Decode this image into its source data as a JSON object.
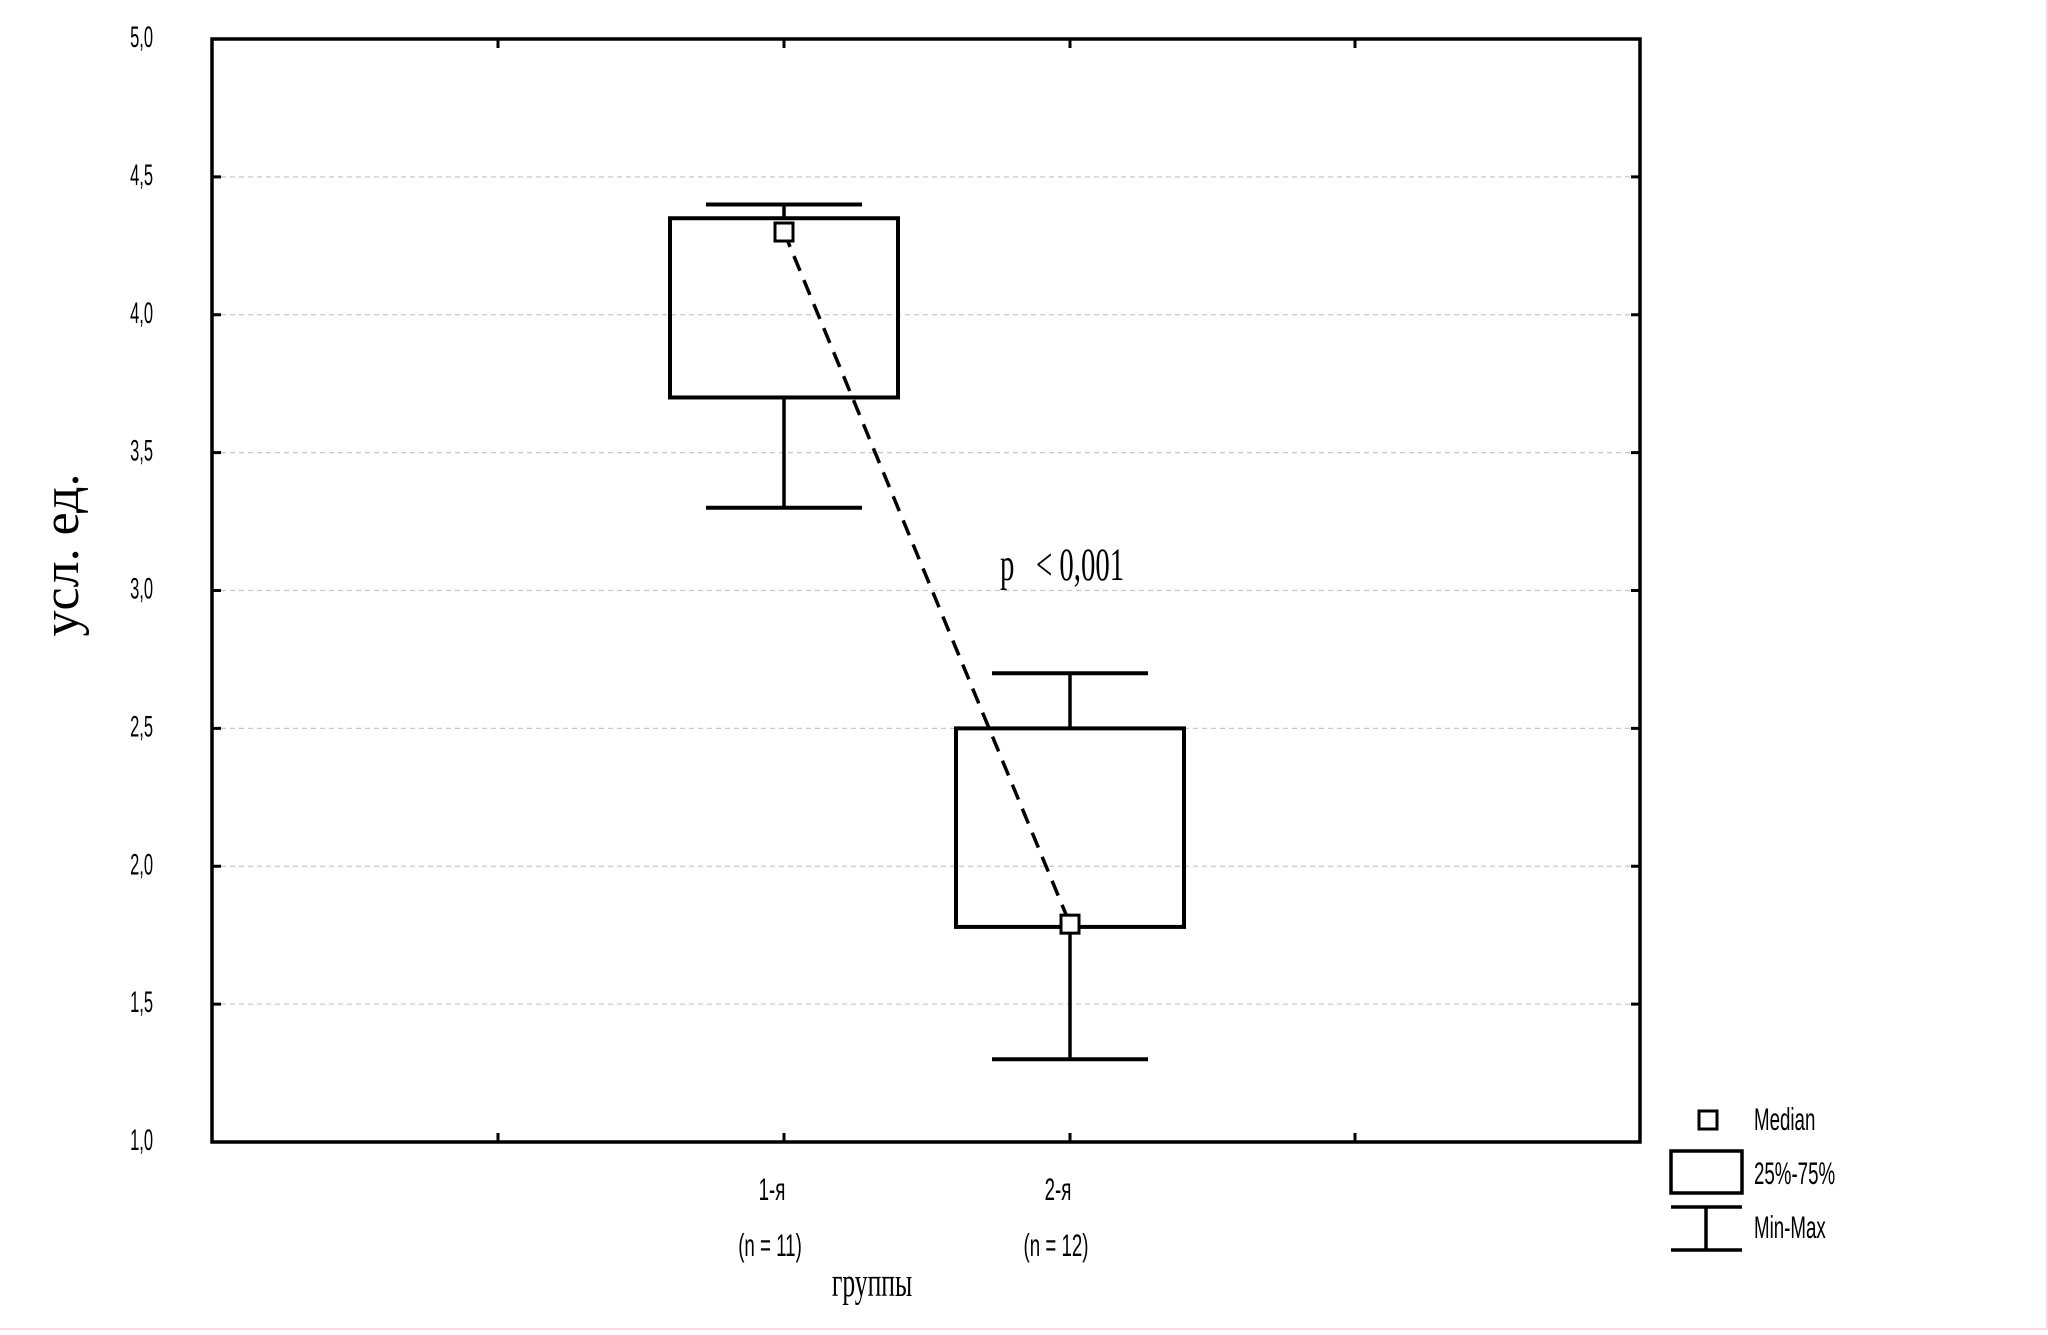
{
  "chart_data": {
    "type": "box",
    "ylabel": "усл. ед.",
    "xlabel": "группы",
    "ylim": [
      1.0,
      5.0
    ],
    "yticks": [
      "1,0",
      "1,5",
      "2,0",
      "2,5",
      "3,0",
      "3,5",
      "4,0",
      "4,5",
      "5,0"
    ],
    "grid": true,
    "categories": [
      {
        "label": "1-я",
        "n_label": "(n = 11)"
      },
      {
        "label": "2-я",
        "n_label": "(n = 12)"
      }
    ],
    "series": [
      {
        "min": 3.3,
        "q1": 3.7,
        "median": 4.3,
        "q3": 4.35,
        "max": 4.4
      },
      {
        "min": 1.3,
        "q1": 1.78,
        "median": 1.79,
        "q3": 2.5,
        "max": 2.7
      }
    ],
    "annotation": {
      "text": "p   < 0,001"
    },
    "median_connector": "dashed",
    "legend": {
      "position": "bottom-right",
      "items": [
        {
          "symbol": "median",
          "label": "Median"
        },
        {
          "symbol": "box",
          "label": "25%-75%"
        },
        {
          "symbol": "whisker",
          "label": "Min-Max"
        }
      ]
    },
    "colors": {
      "line": "#000000",
      "grid": "#c8c8c8",
      "background": "#ffffff"
    }
  }
}
